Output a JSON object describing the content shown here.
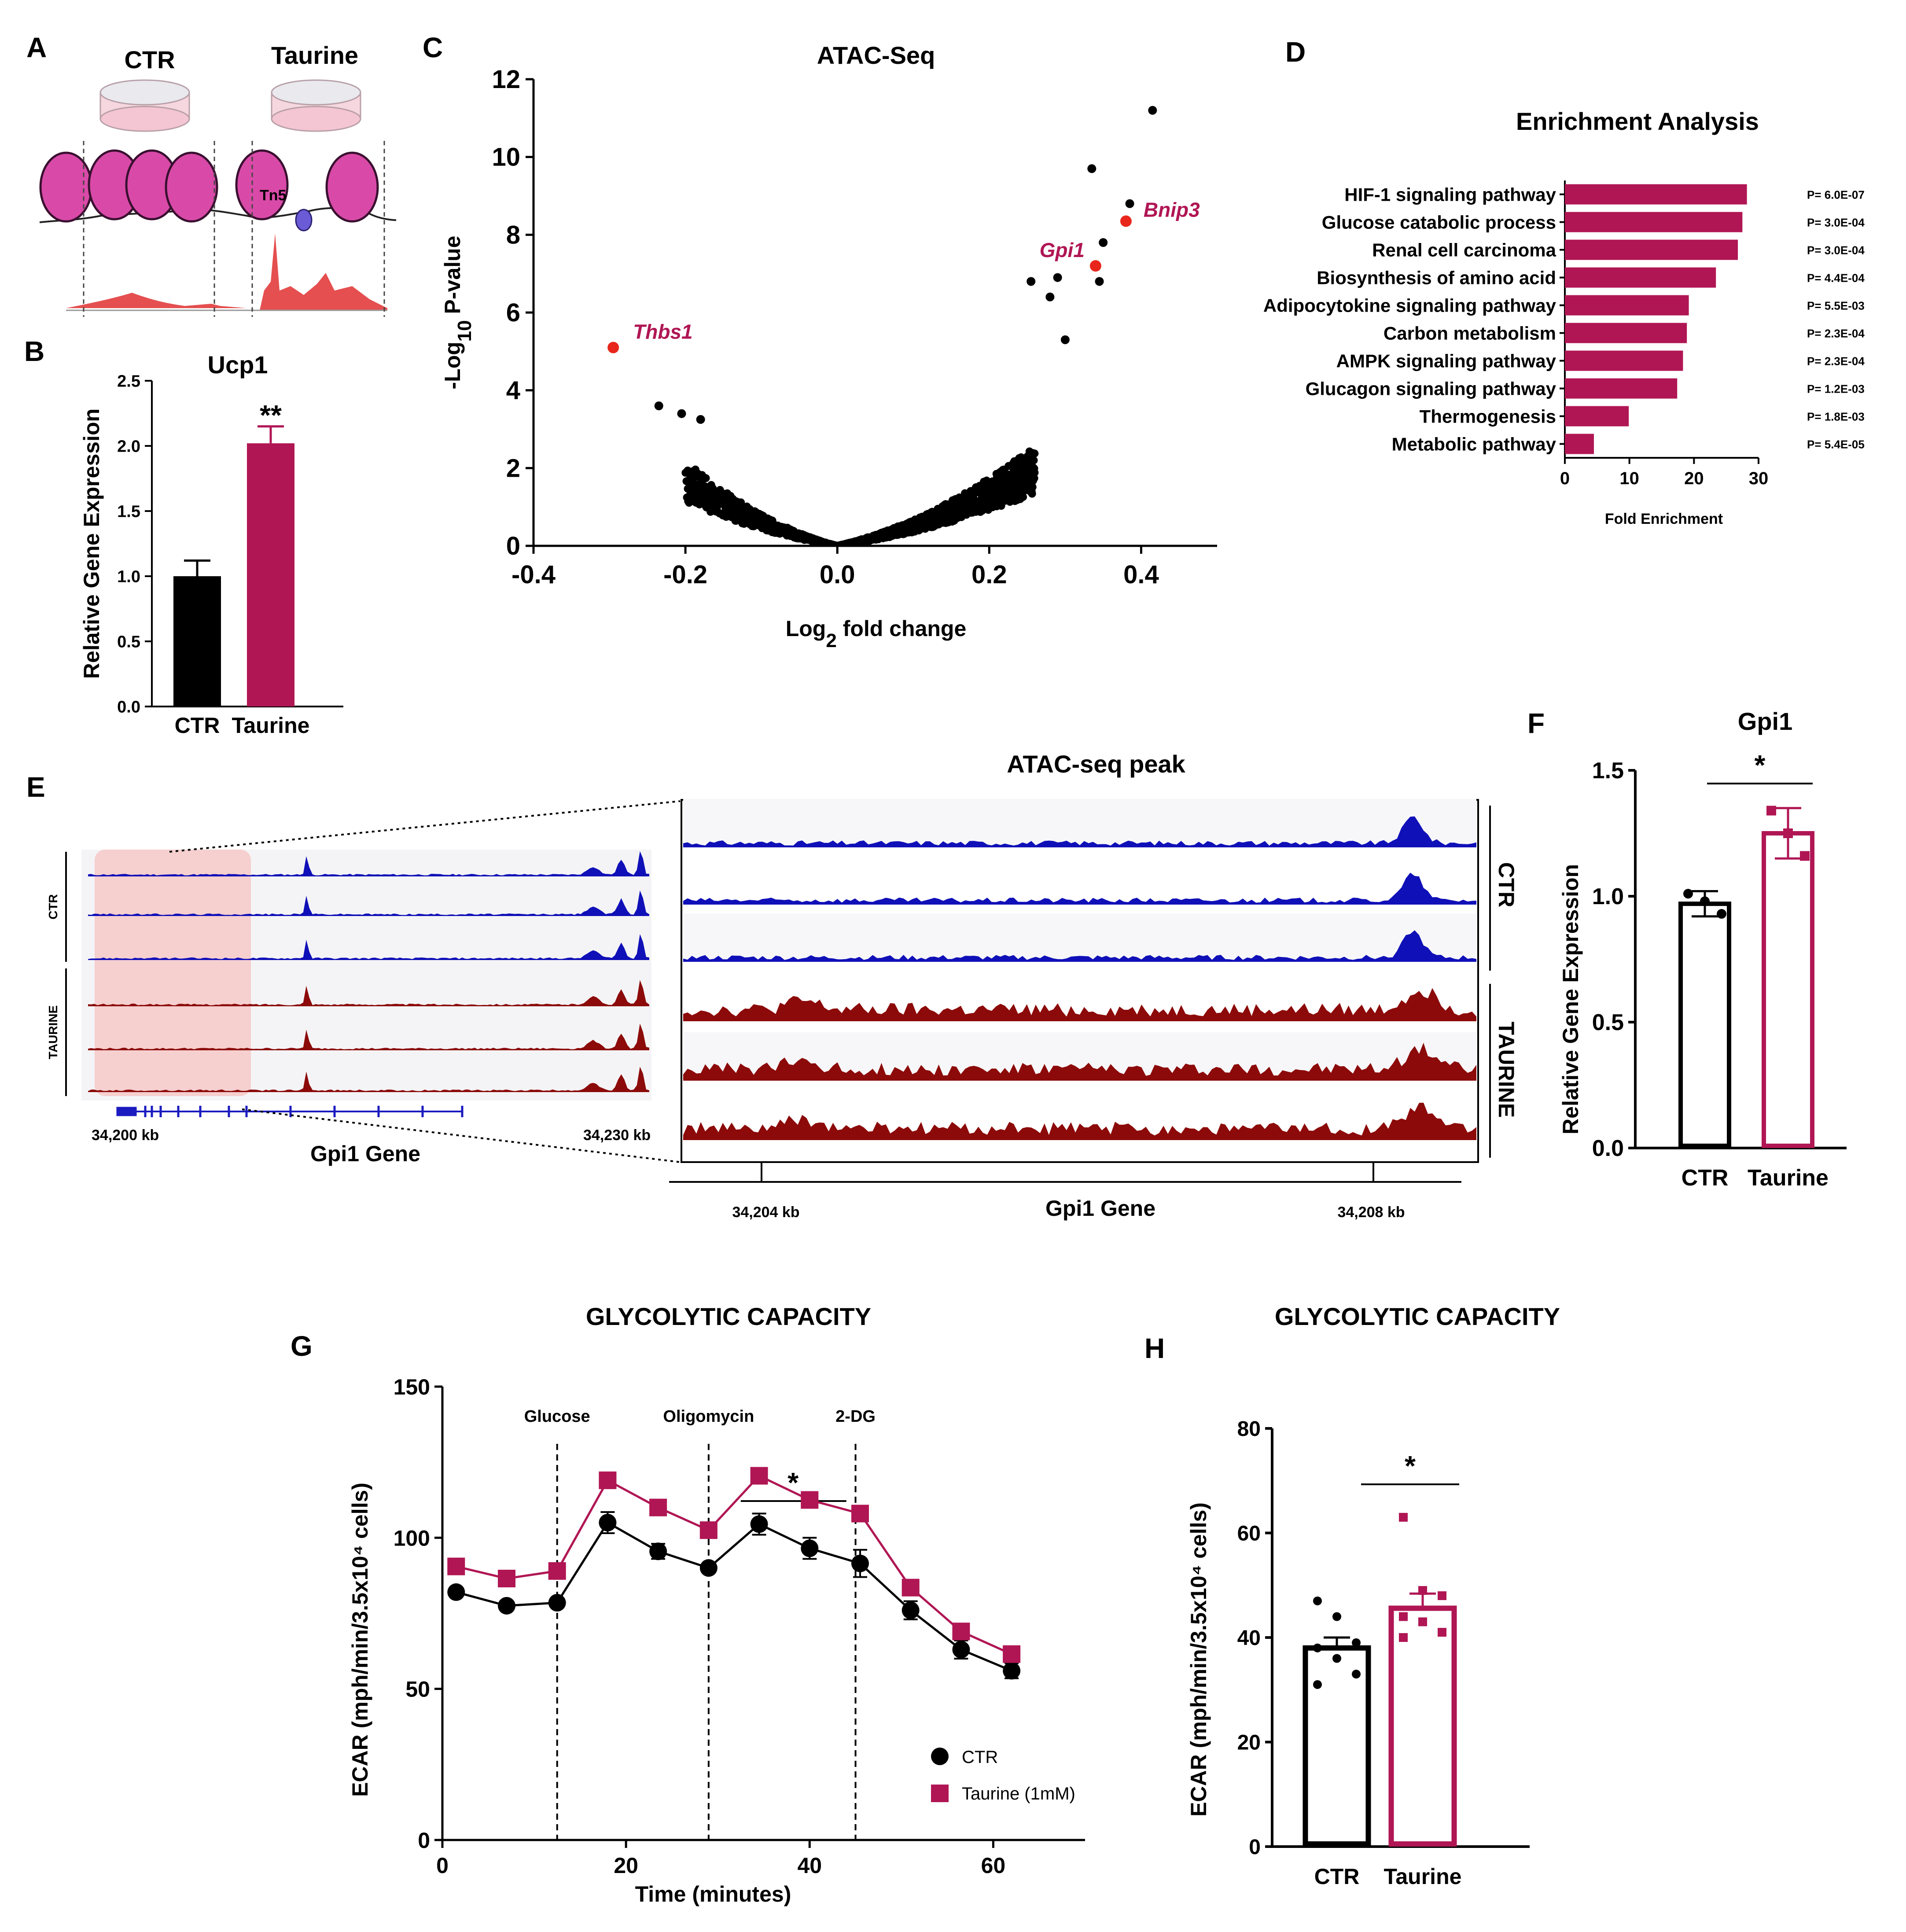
{
  "colors": {
    "ctr": "#000000",
    "taurine": "#b01654",
    "red_point": "#e8261c",
    "ctr_track": "#1010b8",
    "taurine_track": "#8c0a0a",
    "peak_red": "#e03030"
  },
  "panel_letters": {
    "A": "A",
    "B": "B",
    "C": "C",
    "D": "D",
    "E": "E",
    "F": "F",
    "G": "G",
    "H": "H"
  },
  "panel_a": {
    "label_ctr": "CTR",
    "label_taurine": "Taurine",
    "tn5": "Tn5"
  },
  "chart_data": [
    {
      "id": "B",
      "type": "bar",
      "title": "Ucp1",
      "ylabel": "Relative Gene Expression",
      "categories": [
        "CTR",
        "Taurine"
      ],
      "values": [
        1.0,
        2.02
      ],
      "errors": [
        0.12,
        0.13
      ],
      "ylim": [
        0,
        2.5
      ],
      "yticks": [
        "0.0",
        "0.5",
        "1.0",
        "1.5",
        "2.0",
        "2.5"
      ],
      "significance": "**"
    },
    {
      "id": "C",
      "type": "scatter",
      "title": "ATAC-Seq",
      "xlabel": "Log2 fold change",
      "ylabel": "-Log10 P-value",
      "xlim": [
        -0.4,
        0.5
      ],
      "ylim": [
        0,
        12
      ],
      "xticks": [
        "-0.4",
        "-0.2",
        "0.0",
        "0.2",
        "0.4"
      ],
      "yticks": [
        "0",
        "2",
        "4",
        "6",
        "8",
        "10",
        "12"
      ],
      "highlighted": [
        {
          "gene": "Thbs1",
          "x": -0.295,
          "y": 5.1
        },
        {
          "gene": "Gpi1",
          "x": 0.34,
          "y": 7.2
        },
        {
          "gene": "Bnip3",
          "x": 0.38,
          "y": 8.35
        }
      ],
      "top_points": [
        {
          "x": 0.415,
          "y": 11.2
        },
        {
          "x": 0.335,
          "y": 9.7
        },
        {
          "x": 0.385,
          "y": 8.8
        },
        {
          "x": 0.35,
          "y": 7.8
        },
        {
          "x": 0.345,
          "y": 6.8
        },
        {
          "x": 0.29,
          "y": 6.9
        },
        {
          "x": 0.255,
          "y": 6.8
        },
        {
          "x": 0.28,
          "y": 6.4
        },
        {
          "x": 0.3,
          "y": 5.3
        },
        {
          "x": -0.235,
          "y": 3.6
        },
        {
          "x": -0.205,
          "y": 3.4
        },
        {
          "x": -0.18,
          "y": 3.25
        }
      ]
    },
    {
      "id": "D",
      "type": "bar",
      "orientation": "horizontal",
      "title": "Enrichment Analysis",
      "xlabel": "Fold Enrichment",
      "xlim": [
        0,
        30
      ],
      "xticks": [
        "0",
        "10",
        "20",
        "30"
      ],
      "categories": [
        "HIF-1 signaling pathway",
        "Glucose catabolic process",
        "Renal cell carcinoma",
        "Biosynthesis of amino acid",
        "Adipocytokine signaling pathway",
        "Carbon metabolism",
        "AMPK signaling pathway",
        "Glucagon signaling pathway",
        "Thermogenesis",
        "Metabolic pathway"
      ],
      "values": [
        28.2,
        27.5,
        26.8,
        23.4,
        19.2,
        18.9,
        18.3,
        17.4,
        9.9,
        4.5
      ],
      "pvalues": [
        "P= 6.0E-07",
        "P= 3.0E-04",
        "P= 3.0E-04",
        "P= 4.4E-04",
        "P= 5.5E-03",
        "P= 2.3E-04",
        "P= 2.3E-04",
        "P= 1.2E-03",
        "P= 1.8E-03",
        "P= 5.4E-05"
      ]
    },
    {
      "id": "F",
      "type": "bar",
      "title": "Gpi1",
      "ylabel": "Relative Gene Expression",
      "categories": [
        "CTR",
        "Taurine"
      ],
      "values": [
        0.97,
        1.25
      ],
      "errors": [
        0.05,
        0.1
      ],
      "points": [
        [
          1.01,
          0.98,
          0.93
        ],
        [
          1.34,
          1.25,
          1.16
        ]
      ],
      "ylim": [
        0,
        1.5
      ],
      "yticks": [
        "0.0",
        "0.5",
        "1.0",
        "1.5"
      ],
      "significance": "*"
    },
    {
      "id": "G",
      "type": "line",
      "title": "GLYCOLYTIC CAPACITY",
      "xlabel": "Time (minutes)",
      "ylabel": "ECAR (mph/min/3.5x10⁴ cells)",
      "xlim": [
        0,
        70
      ],
      "ylim": [
        0,
        150
      ],
      "xticks": [
        "0",
        "20",
        "40",
        "60"
      ],
      "yticks": [
        "0",
        "50",
        "100",
        "150"
      ],
      "injections": [
        {
          "label": "Glucose",
          "x": 12.5
        },
        {
          "label": "Oligomycin",
          "x": 29
        },
        {
          "label": "2-DG",
          "x": 45
        }
      ],
      "x": [
        1.5,
        7,
        12.5,
        18,
        23.5,
        29,
        34.5,
        40,
        45.5,
        51,
        56.5,
        62
      ],
      "series": [
        {
          "name": "CTR",
          "values": [
            82,
            77.5,
            78.5,
            105,
            95.5,
            90,
            104.5,
            96.5,
            91.5,
            76,
            63,
            56
          ],
          "errors": [
            1,
            1,
            1,
            3.5,
            2.5,
            1.5,
            3.5,
            3.5,
            4.5,
            3,
            3,
            2.5
          ]
        },
        {
          "name": "Taurine (1mM)",
          "values": [
            90.5,
            86.5,
            89,
            119,
            110,
            102.5,
            120.5,
            112.5,
            108,
            83.5,
            69,
            61.5
          ],
          "errors": [
            1,
            1,
            1,
            2,
            1,
            1.5,
            2,
            1.5,
            2,
            1.5,
            1.5,
            1
          ]
        }
      ],
      "significance": "*"
    },
    {
      "id": "H",
      "type": "bar",
      "title": "GLYCOLYTIC CAPACITY",
      "ylabel": "ECAR (mph/min/3.5x10⁴ cells)",
      "categories": [
        "CTR",
        "Taurine"
      ],
      "values": [
        38,
        45.6
      ],
      "errors": [
        2.0,
        2.8
      ],
      "points": [
        [
          47,
          44,
          39,
          38,
          36,
          33,
          31
        ],
        [
          63,
          49,
          48,
          44,
          43,
          41,
          40
        ]
      ],
      "ylim": [
        0,
        80
      ],
      "yticks": [
        "0",
        "20",
        "40",
        "60",
        "80"
      ],
      "significance": "*"
    }
  ],
  "panel_e": {
    "title": "ATAC-seq peak",
    "group_ctr": "CTR",
    "group_taurine": "TAURINE",
    "left_start": "34,200 kb",
    "left_end": "34,230 kb",
    "gene_left": "Gpi1 Gene",
    "zoom_left": "34,204 kb",
    "zoom_right": "34,208 kb",
    "gene_zoom": "Gpi1 Gene"
  },
  "legend_g": {
    "ctr": "CTR",
    "taurine": "Taurine (1mM)"
  }
}
